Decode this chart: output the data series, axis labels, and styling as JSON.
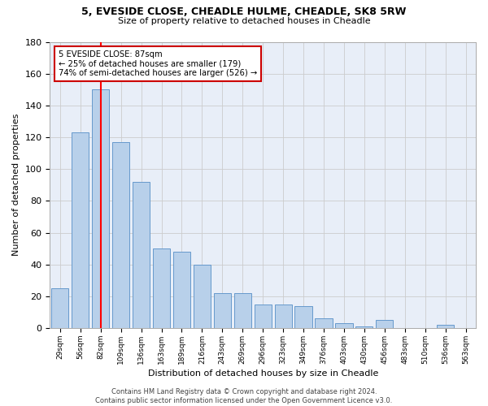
{
  "title1": "5, EVESIDE CLOSE, CHEADLE HULME, CHEADLE, SK8 5RW",
  "title2": "Size of property relative to detached houses in Cheadle",
  "xlabel": "Distribution of detached houses by size in Cheadle",
  "ylabel": "Number of detached properties",
  "categories": [
    "29sqm",
    "56sqm",
    "82sqm",
    "109sqm",
    "136sqm",
    "163sqm",
    "189sqm",
    "216sqm",
    "243sqm",
    "269sqm",
    "296sqm",
    "323sqm",
    "349sqm",
    "376sqm",
    "403sqm",
    "430sqm",
    "456sqm",
    "483sqm",
    "510sqm",
    "536sqm",
    "563sqm"
  ],
  "values": [
    25,
    123,
    150,
    117,
    92,
    50,
    48,
    40,
    22,
    22,
    15,
    15,
    14,
    6,
    3,
    1,
    5,
    0,
    0,
    2,
    0
  ],
  "bar_color": "#b8d0ea",
  "bar_edge_color": "#6699cc",
  "highlight_bar_index": 2,
  "annotation_line1": "5 EVESIDE CLOSE: 87sqm",
  "annotation_line2": "← 25% of detached houses are smaller (179)",
  "annotation_line3": "74% of semi-detached houses are larger (526) →",
  "annotation_box_color": "#ffffff",
  "annotation_box_edge_color": "#cc0000",
  "ylim": [
    0,
    180
  ],
  "yticks": [
    0,
    20,
    40,
    60,
    80,
    100,
    120,
    140,
    160,
    180
  ],
  "grid_color": "#cccccc",
  "background_color": "#e8eef8",
  "footer_line1": "Contains HM Land Registry data © Crown copyright and database right 2024.",
  "footer_line2": "Contains public sector information licensed under the Open Government Licence v3.0."
}
